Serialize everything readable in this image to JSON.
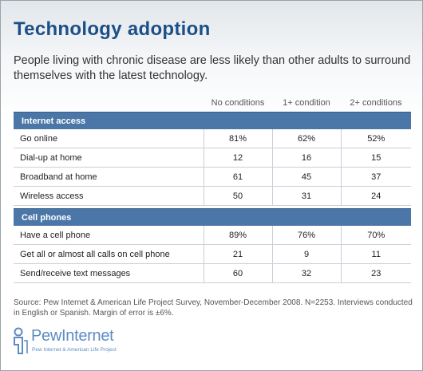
{
  "title": "Technology adoption",
  "subtitle": "People living with chronic disease are less likely than other adults to surround themselves with the latest technology.",
  "chart_data": {
    "type": "table",
    "columns": [
      "No conditions",
      "1+ condition",
      "2+ conditions"
    ],
    "sections": [
      {
        "name": "Internet access",
        "rows": [
          {
            "label": "Go online",
            "values": [
              "81%",
              "62%",
              "52%"
            ]
          },
          {
            "label": "Dial-up at home",
            "values": [
              "12",
              "16",
              "15"
            ]
          },
          {
            "label": "Broadband at home",
            "values": [
              "61",
              "45",
              "37"
            ]
          },
          {
            "label": "Wireless access",
            "values": [
              "50",
              "31",
              "24"
            ]
          }
        ]
      },
      {
        "name": "Cell phones",
        "rows": [
          {
            "label": "Have a cell phone",
            "values": [
              "89%",
              "76%",
              "70%"
            ]
          },
          {
            "label": "Get all or almost all calls on cell phone",
            "values": [
              "21",
              "9",
              "11"
            ]
          },
          {
            "label": "Send/receive text messages",
            "values": [
              "60",
              "32",
              "23"
            ]
          }
        ]
      }
    ]
  },
  "source": "Source: Pew Internet & American Life Project Survey, November-December 2008. N=2253. Interviews conducted in English or Spanish.  Margin of error is ±6%.",
  "logo": {
    "word": "PewInternet",
    "sub": "Pew Internet & American Life Project",
    "color": "#5d8cc4"
  },
  "colors": {
    "title": "#1c4f86",
    "section_band": "#4b77a8"
  }
}
